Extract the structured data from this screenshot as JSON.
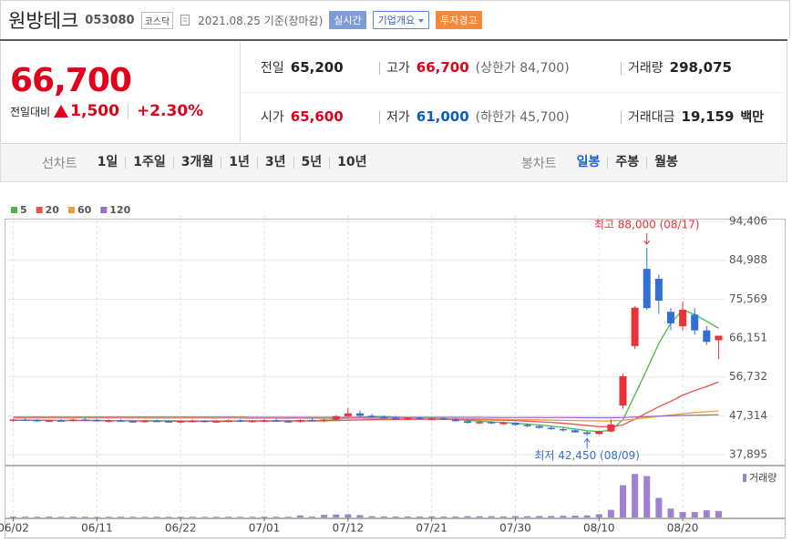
{
  "header": {
    "name": "원방테크",
    "code": "053080",
    "market": "코스닥",
    "date": "2021.08.25 기준(장마감)",
    "buttons": [
      "실시간",
      "기업개요",
      "투자경고"
    ]
  },
  "quote": {
    "price": "66,700",
    "change_label": "전일대비",
    "change": "1,500",
    "change_rate": "+2.30%",
    "tone_colors": {
      "up": "#e0001b",
      "down": "#0a5dc2",
      "flat": "#222222"
    },
    "stats": [
      [
        {
          "label": "전일",
          "value": "65,200",
          "tone": "flat"
        },
        {
          "label": "고가",
          "value": "66,700",
          "tone": "up",
          "note": "(상한가 84,700)"
        },
        {
          "label": "거래량",
          "value": "298,075",
          "tone": "flat"
        }
      ],
      [
        {
          "label": "시가",
          "value": "65,600",
          "tone": "up"
        },
        {
          "label": "저가",
          "value": "61,000",
          "tone": "down",
          "note": "(하한가 45,700)"
        },
        {
          "label": "거래대금",
          "value": "19,159",
          "tone": "flat",
          "unit": "백만"
        }
      ]
    ]
  },
  "tabs": {
    "line": {
      "label": "선차트",
      "items": [
        "1일",
        "1주일",
        "3개월",
        "1년",
        "3년",
        "5년",
        "10년"
      ]
    },
    "candle": {
      "label": "봉차트",
      "items": [
        "일봉",
        "주봉",
        "월봉"
      ],
      "active": 0,
      "active_color": "#1a5fd0"
    }
  },
  "chart_data": {
    "type": "candlestick",
    "categories": [
      "06/02",
      "06/03",
      "06/04",
      "06/07",
      "06/08",
      "06/09",
      "06/10",
      "06/11",
      "06/14",
      "06/15",
      "06/16",
      "06/17",
      "06/18",
      "06/21",
      "06/22",
      "06/23",
      "06/24",
      "06/25",
      "06/28",
      "06/29",
      "06/30",
      "07/01",
      "07/02",
      "07/05",
      "07/06",
      "07/07",
      "07/08",
      "07/09",
      "07/12",
      "07/13",
      "07/14",
      "07/15",
      "07/16",
      "07/19",
      "07/20",
      "07/21",
      "07/22",
      "07/23",
      "07/26",
      "07/27",
      "07/28",
      "07/29",
      "07/30",
      "08/02",
      "08/03",
      "08/04",
      "08/05",
      "08/06",
      "08/09",
      "08/10",
      "08/11",
      "08/12",
      "08/13",
      "08/17",
      "08/18",
      "08/19",
      "08/20",
      "08/23",
      "08/24",
      "08/25"
    ],
    "open": [
      46200,
      46400,
      46300,
      46000,
      46200,
      46100,
      46400,
      46300,
      46000,
      46200,
      46000,
      45900,
      46100,
      46000,
      45800,
      46000,
      46100,
      45900,
      46000,
      46200,
      45900,
      46100,
      46200,
      46000,
      45900,
      46300,
      46100,
      46400,
      47200,
      47900,
      47300,
      47000,
      46800,
      46600,
      46800,
      46500,
      46700,
      46400,
      46000,
      45600,
      45800,
      45500,
      45600,
      45100,
      44800,
      44400,
      44100,
      43800,
      43300,
      42900,
      43500,
      49800,
      64200,
      82900,
      80500,
      72500,
      69000,
      71800,
      68000,
      65600
    ],
    "high": [
      46600,
      46700,
      46500,
      46400,
      46500,
      46600,
      46800,
      46500,
      46400,
      46500,
      46300,
      46300,
      46400,
      46300,
      46200,
      46400,
      46300,
      46200,
      46400,
      46500,
      46300,
      46500,
      46600,
      46300,
      46400,
      46700,
      46600,
      47500,
      49200,
      48600,
      47800,
      47400,
      47200,
      47000,
      47100,
      46900,
      47000,
      46700,
      46300,
      46000,
      46000,
      45900,
      45800,
      45400,
      45100,
      44800,
      44400,
      44000,
      43600,
      43700,
      46500,
      57500,
      73900,
      88000,
      81500,
      73400,
      75000,
      73400,
      69000,
      66700
    ],
    "low": [
      45900,
      46100,
      45900,
      45800,
      45900,
      45900,
      46100,
      45900,
      45700,
      45900,
      45700,
      45600,
      45800,
      45600,
      45500,
      45700,
      45700,
      45600,
      45700,
      45800,
      45600,
      45800,
      45900,
      45700,
      45600,
      46000,
      45800,
      46200,
      46800,
      47000,
      46800,
      46500,
      46400,
      46300,
      46400,
      46200,
      46300,
      45900,
      45400,
      45300,
      45300,
      45200,
      44900,
      44600,
      44200,
      43900,
      43500,
      43200,
      42450,
      42700,
      43300,
      49000,
      63500,
      73000,
      72000,
      68000,
      68000,
      67000,
      64500,
      61000
    ],
    "close": [
      46400,
      46300,
      46000,
      46200,
      46100,
      46400,
      46300,
      46000,
      46200,
      46000,
      45900,
      46100,
      46000,
      45800,
      46000,
      46100,
      45900,
      46000,
      46200,
      45900,
      46100,
      46200,
      46000,
      45900,
      46300,
      46100,
      46400,
      47200,
      47900,
      47300,
      47000,
      46800,
      46600,
      46800,
      46500,
      46700,
      46400,
      46000,
      45600,
      45800,
      45500,
      45600,
      45100,
      44800,
      44400,
      44100,
      43800,
      43300,
      42900,
      43500,
      45200,
      56900,
      73500,
      73400,
      75200,
      69700,
      73000,
      68000,
      65200,
      66700
    ],
    "up_color": "#e8333a",
    "down_color": "#2f6fd6",
    "series": [
      {
        "name": "5",
        "color": "#4cb849",
        "values": [
          46200,
          46250,
          46250,
          46200,
          46200,
          46200,
          46200,
          46200,
          46150,
          46100,
          46050,
          46050,
          46050,
          46000,
          45950,
          46000,
          46000,
          45950,
          46000,
          46050,
          46050,
          46100,
          46100,
          46100,
          46100,
          46100,
          46200,
          46400,
          46800,
          47000,
          47100,
          47100,
          47000,
          46800,
          46700,
          46700,
          46600,
          46400,
          46200,
          46000,
          45800,
          45700,
          45500,
          45300,
          45100,
          44800,
          44500,
          44100,
          43700,
          43500,
          43800,
          46360,
          52400,
          58500,
          64840,
          69740,
          72960,
          71860,
          70220,
          68520
        ]
      },
      {
        "name": "20",
        "color": "#e8534e",
        "values": [
          46200,
          46200,
          46200,
          46200,
          46150,
          46150,
          46150,
          46150,
          46150,
          46100,
          46100,
          46100,
          46100,
          46100,
          46050,
          46050,
          46050,
          46050,
          46050,
          46050,
          46050,
          46050,
          46050,
          46050,
          46050,
          46050,
          46100,
          46150,
          46250,
          46300,
          46350,
          46400,
          46400,
          46450,
          46450,
          46450,
          46450,
          46450,
          46400,
          46350,
          46300,
          46250,
          46150,
          46000,
          45850,
          45700,
          45500,
          45250,
          44950,
          44700,
          44600,
          45100,
          46500,
          48000,
          49500,
          50800,
          52300,
          53400,
          54400,
          55500
        ]
      },
      {
        "name": "60",
        "color": "#f39a35",
        "values": [
          46800,
          46800,
          46800,
          46800,
          46800,
          46800,
          46800,
          46800,
          46800,
          46800,
          46750,
          46750,
          46750,
          46750,
          46750,
          46750,
          46750,
          46750,
          46750,
          46750,
          46700,
          46700,
          46700,
          46700,
          46700,
          46700,
          46700,
          46700,
          46700,
          46700,
          46650,
          46650,
          46650,
          46650,
          46650,
          46650,
          46650,
          46650,
          46600,
          46550,
          46500,
          46450,
          46400,
          46350,
          46300,
          46250,
          46200,
          46150,
          46100,
          46050,
          46050,
          46200,
          46500,
          46850,
          47200,
          47500,
          47800,
          48100,
          48300,
          48500
        ]
      },
      {
        "name": "120",
        "color": "#9b6bd0",
        "values": [
          47000,
          47000,
          47000,
          47000,
          47000,
          47000,
          47000,
          47000,
          47000,
          47000,
          47000,
          47000,
          47000,
          47000,
          47000,
          47000,
          47000,
          47000,
          47000,
          47000,
          46950,
          46950,
          46950,
          46950,
          46950,
          46950,
          46950,
          46950,
          46950,
          46950,
          46950,
          46950,
          46950,
          46950,
          46950,
          46950,
          46950,
          46950,
          46950,
          46950,
          46900,
          46900,
          46900,
          46900,
          46900,
          46900,
          46900,
          46900,
          46850,
          46850,
          46850,
          46900,
          47000,
          47100,
          47200,
          47300,
          47400,
          47450,
          47500,
          47550
        ]
      }
    ],
    "ylim": [
      35470,
      95510
    ],
    "yticks": [
      {
        "value": 94406,
        "label": "94,406"
      },
      {
        "value": 84988,
        "label": "84,988"
      },
      {
        "value": 75569,
        "label": "75,569"
      },
      {
        "value": 66151,
        "label": "66,151"
      },
      {
        "value": 56732,
        "label": "56,732"
      },
      {
        "value": 47314,
        "label": "47,314"
      },
      {
        "value": 37895,
        "label": "37,895"
      }
    ],
    "xticks": [
      "06/02",
      "06/11",
      "06/22",
      "07/01",
      "07/12",
      "07/21",
      "07/30",
      "08/10",
      "08/20"
    ],
    "grid": true,
    "annotations": {
      "high": "최고 88,000 (08/17)",
      "low": "최저 42,450 (08/09)"
    },
    "volume": {
      "name": "거래량",
      "color": "#a17fd1",
      "ylim": [
        0,
        2300000
      ],
      "values": [
        42000,
        38000,
        35000,
        41000,
        33000,
        39000,
        36000,
        30000,
        34000,
        37000,
        31000,
        29000,
        35000,
        32000,
        30000,
        36000,
        28000,
        31000,
        34000,
        30000,
        33000,
        36000,
        38000,
        35000,
        95000,
        40000,
        120000,
        135000,
        150000,
        110000,
        60000,
        52000,
        45000,
        48000,
        42000,
        50000,
        44000,
        47000,
        62000,
        55000,
        58000,
        51000,
        66000,
        60000,
        72000,
        70000,
        78000,
        85000,
        95000,
        150000,
        350000,
        1480000,
        2000000,
        1900000,
        900000,
        410000,
        250000,
        250000,
        330000,
        298075
      ]
    }
  }
}
